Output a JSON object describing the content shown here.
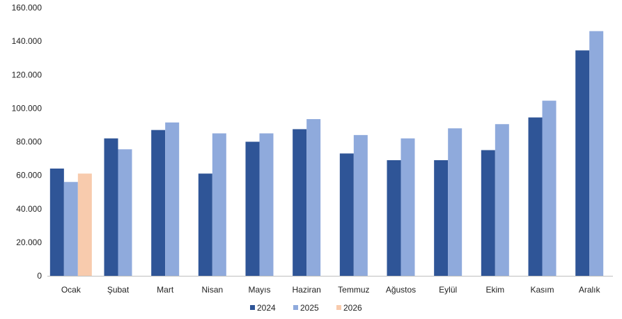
{
  "chart_data": {
    "type": "bar",
    "categories": [
      "Ocak",
      "Şubat",
      "Mart",
      "Nisan",
      "Mayıs",
      "Haziran",
      "Temmuz",
      "Ağustos",
      "Eylül",
      "Ekim",
      "Kasım",
      "Aralık"
    ],
    "series": [
      {
        "name": "2024",
        "color": "#2f5597",
        "values": [
          64000,
          82000,
          87000,
          61000,
          80000,
          87500,
          73000,
          69000,
          69000,
          75000,
          94500,
          134500
        ]
      },
      {
        "name": "2025",
        "color": "#8faadc",
        "values": [
          56000,
          75500,
          91500,
          85000,
          85000,
          93500,
          84000,
          82000,
          88000,
          90500,
          104500,
          146000
        ]
      },
      {
        "name": "2026",
        "color": "#f8cbad",
        "values": [
          61000,
          null,
          null,
          null,
          null,
          null,
          null,
          null,
          null,
          null,
          null,
          null
        ]
      }
    ],
    "y_ticks": [
      "0",
      "20.000",
      "40.000",
      "60.000",
      "80.000",
      "100.000",
      "120.000",
      "140.000",
      "160.000"
    ],
    "ylim": [
      0,
      160000
    ],
    "grid": false,
    "legend_position": "bottom-center",
    "title": "",
    "xlabel": "",
    "ylabel": ""
  }
}
